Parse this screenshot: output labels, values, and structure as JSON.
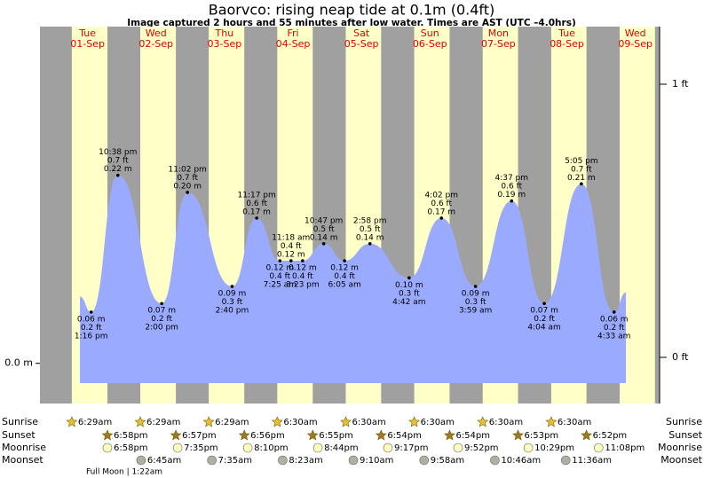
{
  "chart_data": {
    "type": "area",
    "title": "Baorvco: rising  neap tide at 0.1m (0.4ft)",
    "subtitle": "Image captured 2 hours and 55 minutes after low water. Times are AST (UTC –4.0hrs)",
    "color": "#9aaaff",
    "x": [
      9.33,
      13.27,
      22.63,
      38,
      47.03,
      62.67,
      71.28,
      79.42,
      83.3,
      87.38,
      94.78,
      102.08,
      110.97,
      124.7,
      136.03,
      147.98,
      160.62,
      172.07,
      185.08,
      196.55,
      200.7
    ],
    "values": [
      0.078,
      0.06,
      0.22,
      0.07,
      0.2,
      0.09,
      0.17,
      0.12,
      0.12,
      0.12,
      0.14,
      0.12,
      0.14,
      0.1,
      0.17,
      0.09,
      0.19,
      0.07,
      0.21,
      0.06,
      0.083
    ],
    "point_labels": [
      null,
      {
        "m": "0.06 m",
        "ft": "0.2 ft",
        "time": "1:16 pm"
      },
      {
        "m": "0.22 m",
        "ft": "0.7 ft",
        "time": "10:38 pm"
      },
      {
        "m": "0.07 m",
        "ft": "0.2 ft",
        "time": "2:00 pm"
      },
      {
        "m": "0.20 m",
        "ft": "0.7 ft",
        "time": "11:02 pm"
      },
      {
        "m": "0.09 m",
        "ft": "0.3 ft",
        "time": "2:40 pm"
      },
      {
        "m": "0.17 m",
        "ft": "0.6 ft",
        "time": "11:17 pm"
      },
      {
        "m": "0.12 m",
        "ft": "0.4 ft",
        "time": "7:25 am"
      },
      {
        "m": "0.12 m",
        "ft": "0.4 ft",
        "time": "11:18 am"
      },
      {
        "m": "0.12 m",
        "ft": "0.4 ft",
        "time": "3:23 pm"
      },
      {
        "m": "0.14 m",
        "ft": "0.5 ft",
        "time": "10:47 pm"
      },
      {
        "m": "0.12 m",
        "ft": "0.4 ft",
        "time": "6:05 am"
      },
      {
        "m": "0.14 m",
        "ft": "0.5 ft",
        "time": "2:58 pm"
      },
      {
        "m": "0.10 m",
        "ft": "0.3 ft",
        "time": "4:42 am"
      },
      {
        "m": "0.17 m",
        "ft": "0.6 ft",
        "time": "4:02 pm"
      },
      {
        "m": "0.09 m",
        "ft": "0.3 ft",
        "time": "3:59 am"
      },
      {
        "m": "0.19 m",
        "ft": "0.6 ft",
        "time": "4:37 pm"
      },
      {
        "m": "0.07 m",
        "ft": "0.2 ft",
        "time": "4:04 am"
      },
      {
        "m": "0.21 m",
        "ft": "0.7 ft",
        "time": "5:05 pm"
      },
      {
        "m": "0.06 m",
        "ft": "0.2 ft",
        "time": "4:33 am"
      },
      null
    ],
    "xlim": [
      -4.68,
      212.5
    ],
    "xticks": [
      {
        "value": 12,
        "label": "01-Sep"
      },
      {
        "value": 36,
        "label": "02-Sep"
      },
      {
        "value": 60,
        "label": "03-Sep"
      },
      {
        "value": 84,
        "label": "04-Sep"
      },
      {
        "value": 108,
        "label": "05-Sep"
      },
      {
        "value": 132,
        "label": "06-Sep"
      },
      {
        "value": 156,
        "label": "07-Sep"
      },
      {
        "value": 180,
        "label": "08-Sep"
      },
      {
        "value": 204,
        "label": "09-Sep"
      }
    ],
    "weekdays": [
      "Tue",
      "Wed",
      "Thu",
      "Fri",
      "Sat",
      "Sun",
      "Mon",
      "Tue",
      "Wed"
    ],
    "ylim": [
      -0.047,
      0.394
    ],
    "yticks": [
      {
        "value": 0,
        "label": "0.0 m"
      }
    ],
    "y2lim": [
      -0.169,
      1.211
    ],
    "y2ticks": [
      {
        "value": 0,
        "label": "0 ft"
      },
      {
        "value": 1,
        "label": "1 ft"
      }
    ],
    "almanac": {
      "row_labels": {
        "sunrise": "Sunrise",
        "sunset": "Sunset",
        "moonrise": "Moonrise",
        "moonset": "Moonset"
      },
      "sunrise": [
        "6:29am",
        "6:29am",
        "6:29am",
        "6:30am",
        "6:30am",
        "6:30am",
        "6:30am",
        "6:30am"
      ],
      "sunset": [
        "6:58pm",
        "6:57pm",
        "6:56pm",
        "6:55pm",
        "6:54pm",
        "6:54pm",
        "6:53pm",
        "6:52pm"
      ],
      "moonrise": [
        "6:58pm",
        "7:35pm",
        "8:10pm",
        "8:44pm",
        "9:17pm",
        "9:52pm",
        "10:29pm",
        "11:08pm"
      ],
      "moonset": [
        null,
        "6:45am",
        "7:35am",
        "8:23am",
        "9:10am",
        "9:58am",
        "10:46am",
        "11:36am"
      ],
      "moon_phase": "Full Moon | 1:22am"
    }
  }
}
